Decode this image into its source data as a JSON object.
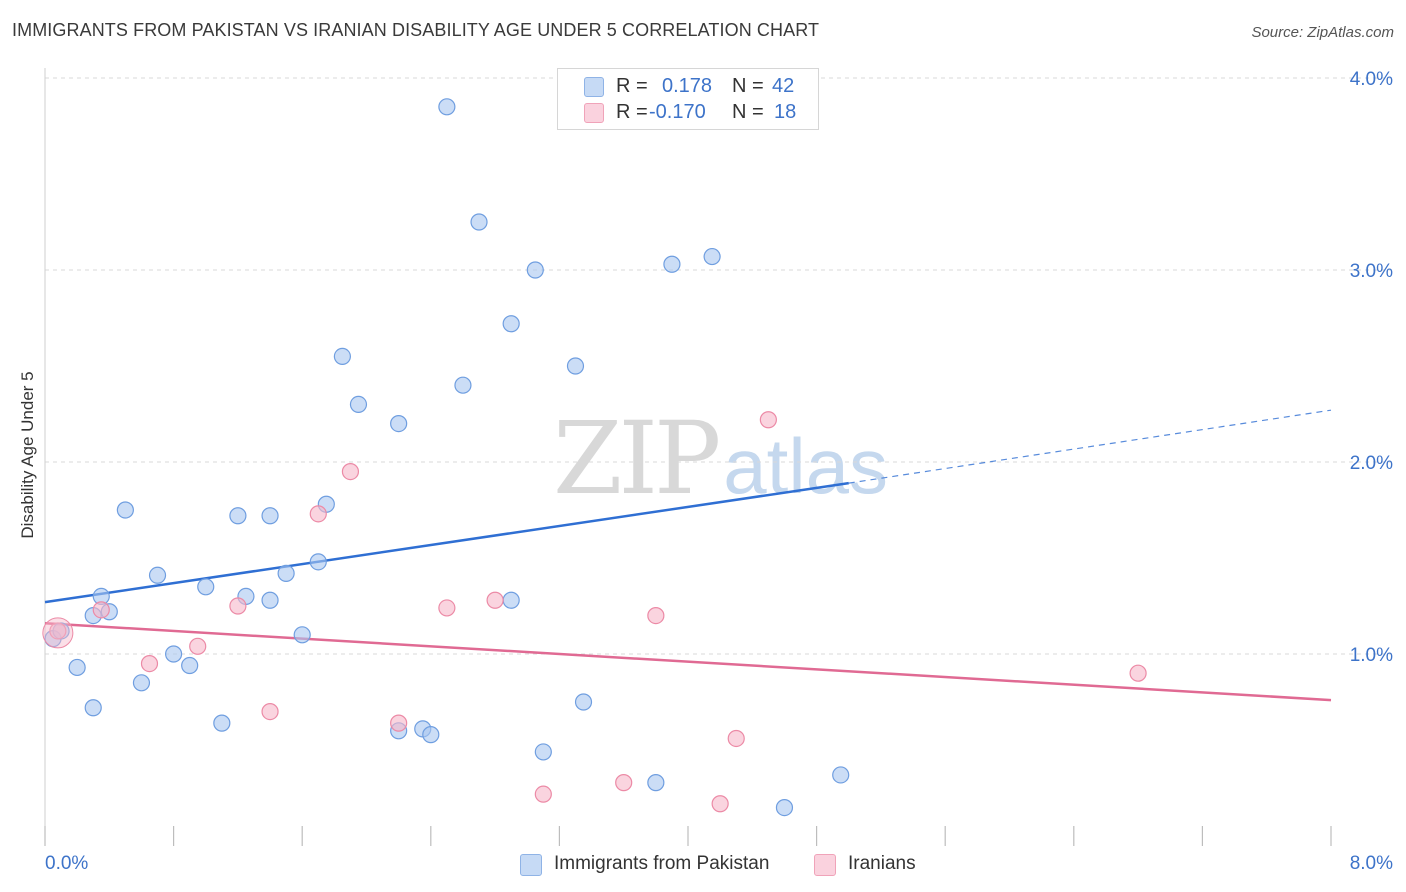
{
  "header": {
    "title": "IMMIGRANTS FROM PAKISTAN VS IRANIAN DISABILITY AGE UNDER 5 CORRELATION CHART",
    "source": "Source: ZipAtlas.com"
  },
  "watermark": {
    "zip": "ZIP",
    "atlas": "atlas"
  },
  "legend_top": {
    "rows": [
      {
        "r_label": "R =",
        "r_value": "0.178",
        "n_label": "N =",
        "n_value": "42",
        "color": "#a9c7f0"
      },
      {
        "r_label": "R =",
        "r_value": "-0.170",
        "n_label": "N =",
        "n_value": "18",
        "color": "#f6b8c9"
      }
    ]
  },
  "legend_bottom": {
    "items": [
      {
        "label": "Immigrants from Pakistan",
        "color": "#a9c7f0"
      },
      {
        "label": "Iranians",
        "color": "#f6b8c9"
      }
    ]
  },
  "colors": {
    "blue_fill": "#a9c7f0",
    "blue_stroke": "#6f9ee0",
    "blue_line": "#2f6fd3",
    "pink_fill": "#f6b8c9",
    "pink_stroke": "#ec8aa6",
    "pink_line": "#e06a93",
    "grid": "#d9d9d9",
    "axis_text": "#3d73c9"
  },
  "chart_data": {
    "type": "scatter",
    "title": "IMMIGRANTS FROM PAKISTAN VS IRANIAN DISABILITY AGE UNDER 5 CORRELATION CHART",
    "xlabel": "",
    "ylabel": "Disability Age Under 5",
    "xlim": [
      0,
      8
    ],
    "ylim": [
      0,
      4.1
    ],
    "x_tick_labels": [
      "0.0%",
      "8.0%"
    ],
    "y_ticks": [
      1,
      2,
      3,
      4
    ],
    "y_tick_labels": [
      "1.0%",
      "2.0%",
      "3.0%",
      "4.0%"
    ],
    "grid": "horizontal dashed",
    "legend_placement": "top-center and bottom",
    "series": [
      {
        "name": "Immigrants from Pakistan",
        "R": 0.178,
        "N": 42,
        "points": [
          [
            0.05,
            1.08
          ],
          [
            0.1,
            1.12
          ],
          [
            0.2,
            0.93
          ],
          [
            0.3,
            0.72
          ],
          [
            0.3,
            1.2
          ],
          [
            0.35,
            1.3
          ],
          [
            0.4,
            1.22
          ],
          [
            0.5,
            1.75
          ],
          [
            0.6,
            0.85
          ],
          [
            0.7,
            1.41
          ],
          [
            0.8,
            1.0
          ],
          [
            0.9,
            0.94
          ],
          [
            1.0,
            1.35
          ],
          [
            1.1,
            0.64
          ],
          [
            1.2,
            1.72
          ],
          [
            1.25,
            1.3
          ],
          [
            1.4,
            1.72
          ],
          [
            1.4,
            1.28
          ],
          [
            1.5,
            1.42
          ],
          [
            1.6,
            1.1
          ],
          [
            1.7,
            1.48
          ],
          [
            1.75,
            1.78
          ],
          [
            1.85,
            2.55
          ],
          [
            1.95,
            2.3
          ],
          [
            2.2,
            2.2
          ],
          [
            2.2,
            0.6
          ],
          [
            2.35,
            0.61
          ],
          [
            2.4,
            0.58
          ],
          [
            2.5,
            3.85
          ],
          [
            2.6,
            2.4
          ],
          [
            2.7,
            3.25
          ],
          [
            2.9,
            2.72
          ],
          [
            2.9,
            1.28
          ],
          [
            3.05,
            3.0
          ],
          [
            3.1,
            0.49
          ],
          [
            3.3,
            2.5
          ],
          [
            3.35,
            0.75
          ],
          [
            3.8,
            0.33
          ],
          [
            3.9,
            3.03
          ],
          [
            4.15,
            3.07
          ],
          [
            4.6,
            0.2
          ],
          [
            4.95,
            0.37
          ]
        ],
        "trend": {
          "x": [
            0,
            5.0
          ],
          "y": [
            1.27,
            1.89
          ],
          "extended_to": [
            8.0,
            2.27
          ]
        }
      },
      {
        "name": "Iranians",
        "R": -0.17,
        "N": 18,
        "points": [
          [
            0.08,
            1.12
          ],
          [
            0.35,
            1.23
          ],
          [
            0.65,
            0.95
          ],
          [
            0.95,
            1.04
          ],
          [
            1.2,
            1.25
          ],
          [
            1.4,
            0.7
          ],
          [
            1.7,
            1.73
          ],
          [
            1.9,
            1.95
          ],
          [
            2.2,
            0.64
          ],
          [
            2.5,
            1.24
          ],
          [
            2.8,
            1.28
          ],
          [
            3.1,
            0.27
          ],
          [
            3.6,
            0.33
          ],
          [
            3.8,
            1.2
          ],
          [
            4.2,
            0.22
          ],
          [
            4.3,
            0.56
          ],
          [
            4.5,
            2.22
          ],
          [
            6.8,
            0.9
          ]
        ],
        "trend": {
          "x": [
            0,
            8.0
          ],
          "y": [
            1.16,
            0.76
          ]
        }
      }
    ]
  }
}
